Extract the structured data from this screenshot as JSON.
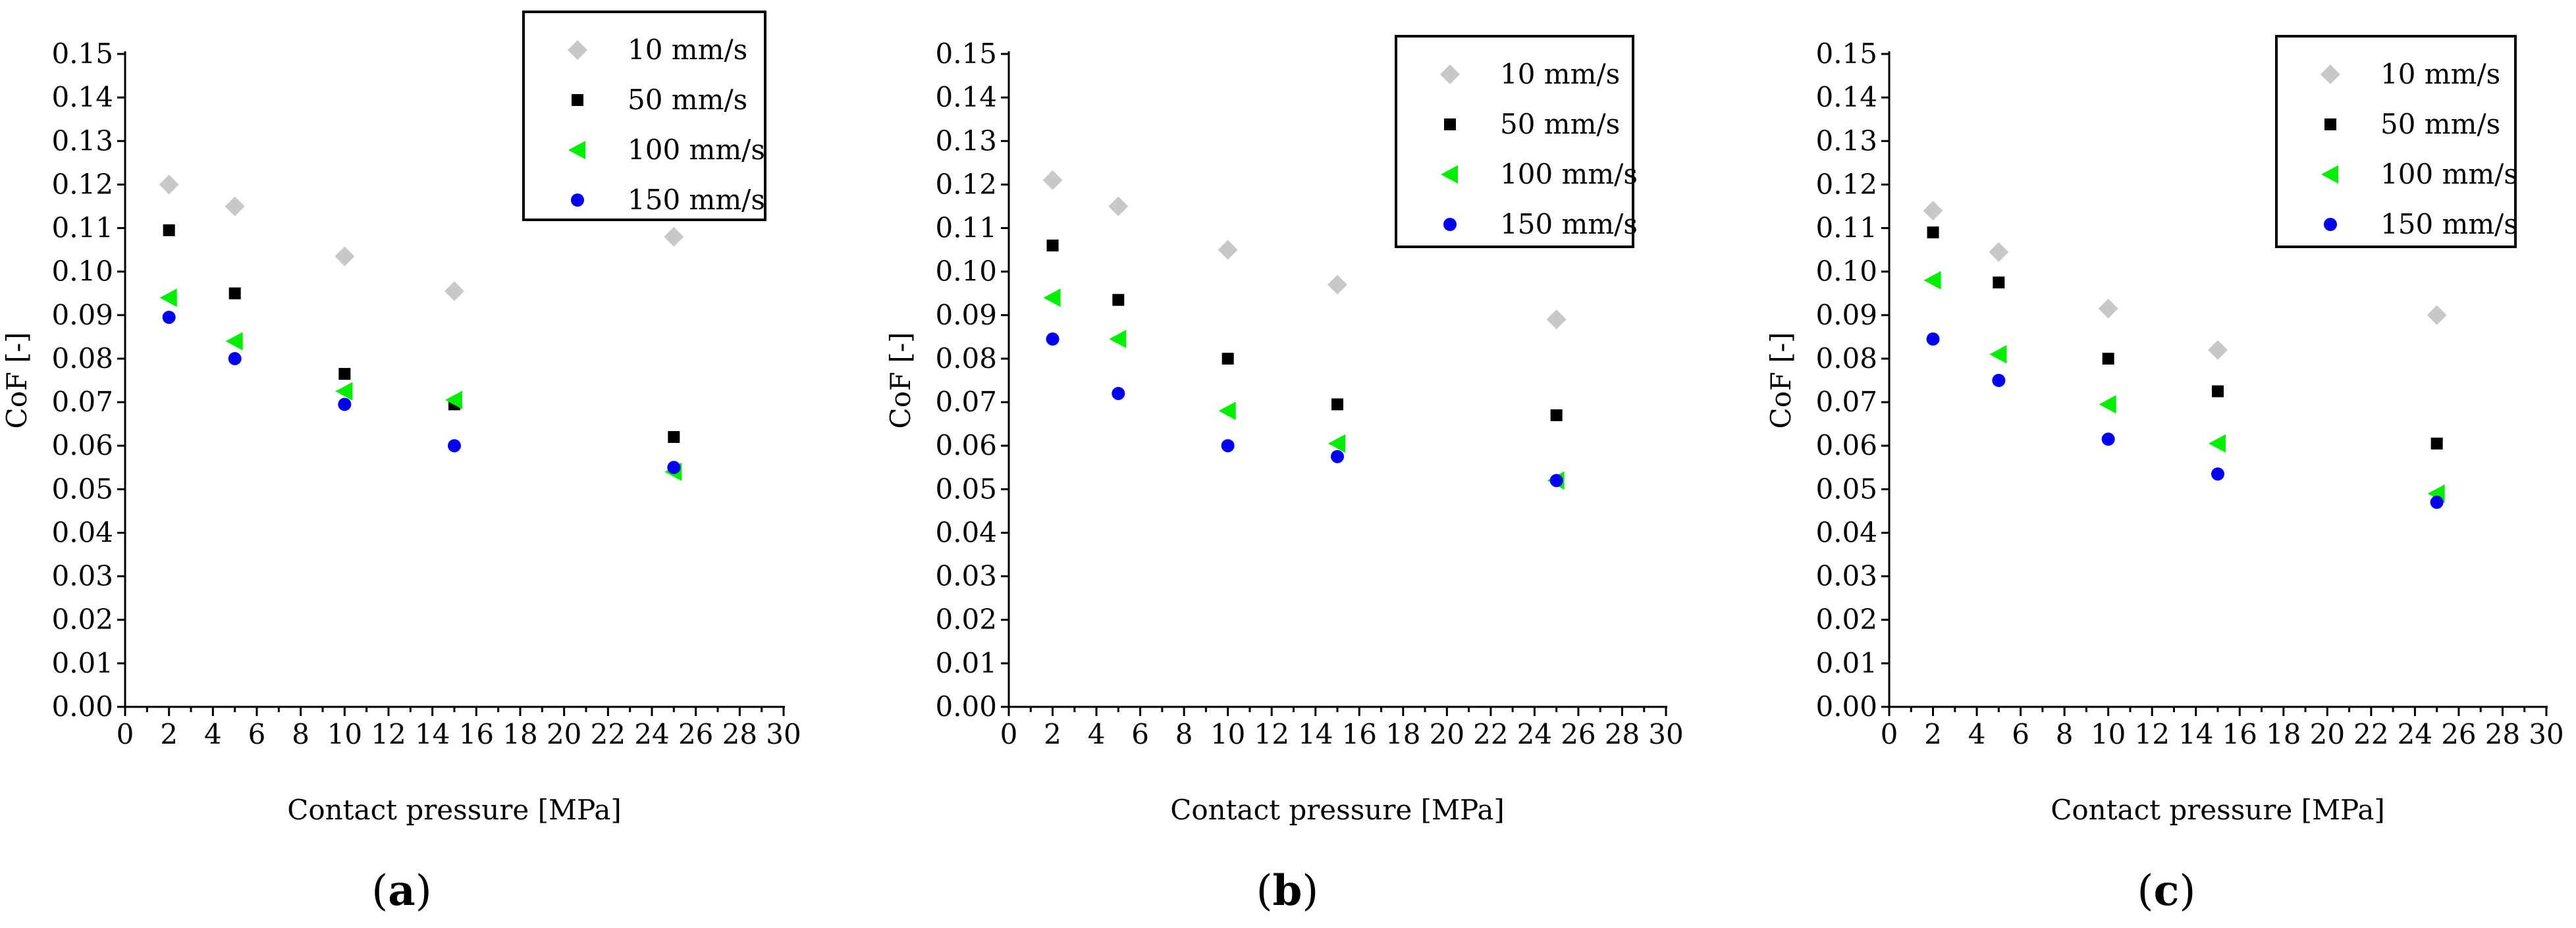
{
  "figure": {
    "panel_labels": [
      "(a)",
      "(b)",
      "(c)"
    ]
  },
  "series_styles": [
    {
      "name": "10 mm/s",
      "marker": "diamond",
      "color": "#c8c8c8"
    },
    {
      "name": "50 mm/s",
      "marker": "square",
      "color": "#000000"
    },
    {
      "name": "100 mm/s",
      "marker": "triangle-left",
      "color": "#00ee00"
    },
    {
      "name": "150 mm/s",
      "marker": "circle",
      "color": "#0000ee"
    }
  ],
  "chart_data": [
    {
      "panel": "a",
      "type": "scatter",
      "title": "",
      "xlabel": "Contact pressure [MPa]",
      "ylabel": "CoF [-]",
      "xlim": [
        0,
        30
      ],
      "ylim": [
        0,
        0.15
      ],
      "xticks": [
        "0",
        "2",
        "4",
        "6",
        "8",
        "10",
        "12",
        "14",
        "16",
        "18",
        "20",
        "22",
        "24",
        "26",
        "28",
        "30"
      ],
      "yticks": [
        "0.00",
        "0.01",
        "0.02",
        "0.03",
        "0.04",
        "0.05",
        "0.06",
        "0.07",
        "0.08",
        "0.09",
        "0.10",
        "0.11",
        "0.12",
        "0.13",
        "0.14",
        "0.15"
      ],
      "legend": "top-right",
      "series": [
        {
          "name": "10 mm/s",
          "x": [
            2,
            5,
            10,
            15,
            25
          ],
          "y": [
            0.12,
            0.115,
            0.1035,
            0.0955,
            0.108
          ]
        },
        {
          "name": "50 mm/s",
          "x": [
            2,
            5,
            10,
            15,
            25
          ],
          "y": [
            0.1095,
            0.095,
            0.0765,
            0.0695,
            0.062
          ]
        },
        {
          "name": "100 mm/s",
          "x": [
            2,
            5,
            10,
            15,
            25
          ],
          "y": [
            0.094,
            0.084,
            0.0725,
            0.0705,
            0.054
          ]
        },
        {
          "name": "150 mm/s",
          "x": [
            2,
            5,
            10,
            15,
            25
          ],
          "y": [
            0.0895,
            0.08,
            0.0695,
            0.06,
            0.055
          ]
        }
      ]
    },
    {
      "panel": "b",
      "type": "scatter",
      "title": "",
      "xlabel": "Contact pressure [MPa]",
      "ylabel": "CoF [-]",
      "xlim": [
        0,
        30
      ],
      "ylim": [
        0,
        0.15
      ],
      "xticks": [
        "0",
        "2",
        "4",
        "6",
        "8",
        "10",
        "12",
        "14",
        "16",
        "18",
        "20",
        "22",
        "24",
        "26",
        "28",
        "30"
      ],
      "yticks": [
        "0.00",
        "0.01",
        "0.02",
        "0.03",
        "0.04",
        "0.05",
        "0.06",
        "0.07",
        "0.08",
        "0.09",
        "0.10",
        "0.11",
        "0.12",
        "0.13",
        "0.14",
        "0.15"
      ],
      "legend": "top-right",
      "series": [
        {
          "name": "10 mm/s",
          "x": [
            2,
            5,
            10,
            15,
            25
          ],
          "y": [
            0.121,
            0.115,
            0.105,
            0.097,
            0.089
          ]
        },
        {
          "name": "50 mm/s",
          "x": [
            2,
            5,
            10,
            15,
            25
          ],
          "y": [
            0.106,
            0.0935,
            0.08,
            0.0695,
            0.067
          ]
        },
        {
          "name": "100 mm/s",
          "x": [
            2,
            5,
            10,
            15,
            25
          ],
          "y": [
            0.094,
            0.0845,
            0.068,
            0.0605,
            0.052
          ]
        },
        {
          "name": "150 mm/s",
          "x": [
            2,
            5,
            10,
            15,
            25
          ],
          "y": [
            0.0845,
            0.072,
            0.06,
            0.0575,
            0.052
          ]
        }
      ]
    },
    {
      "panel": "c",
      "type": "scatter",
      "title": "",
      "xlabel": "Contact pressure [MPa]",
      "ylabel": "CoF [-]",
      "xlim": [
        0,
        30
      ],
      "ylim": [
        0,
        0.15
      ],
      "xticks": [
        "0",
        "2",
        "4",
        "6",
        "8",
        "10",
        "12",
        "14",
        "16",
        "18",
        "20",
        "22",
        "24",
        "26",
        "28",
        "30"
      ],
      "yticks": [
        "0.00",
        "0.01",
        "0.02",
        "0.03",
        "0.04",
        "0.05",
        "0.06",
        "0.07",
        "0.08",
        "0.09",
        "0.10",
        "0.11",
        "0.12",
        "0.13",
        "0.14",
        "0.15"
      ],
      "legend": "top-right",
      "series": [
        {
          "name": "10 mm/s",
          "x": [
            2,
            5,
            10,
            15,
            25
          ],
          "y": [
            0.114,
            0.1045,
            0.0915,
            0.082,
            0.09
          ]
        },
        {
          "name": "50 mm/s",
          "x": [
            2,
            5,
            10,
            15,
            25
          ],
          "y": [
            0.109,
            0.0975,
            0.08,
            0.0725,
            0.0605
          ]
        },
        {
          "name": "100 mm/s",
          "x": [
            2,
            5,
            10,
            15,
            25
          ],
          "y": [
            0.098,
            0.081,
            0.0695,
            0.0605,
            0.049
          ]
        },
        {
          "name": "150 mm/s",
          "x": [
            2,
            5,
            10,
            15,
            25
          ],
          "y": [
            0.0845,
            0.075,
            0.0615,
            0.0535,
            0.047
          ]
        }
      ]
    }
  ]
}
